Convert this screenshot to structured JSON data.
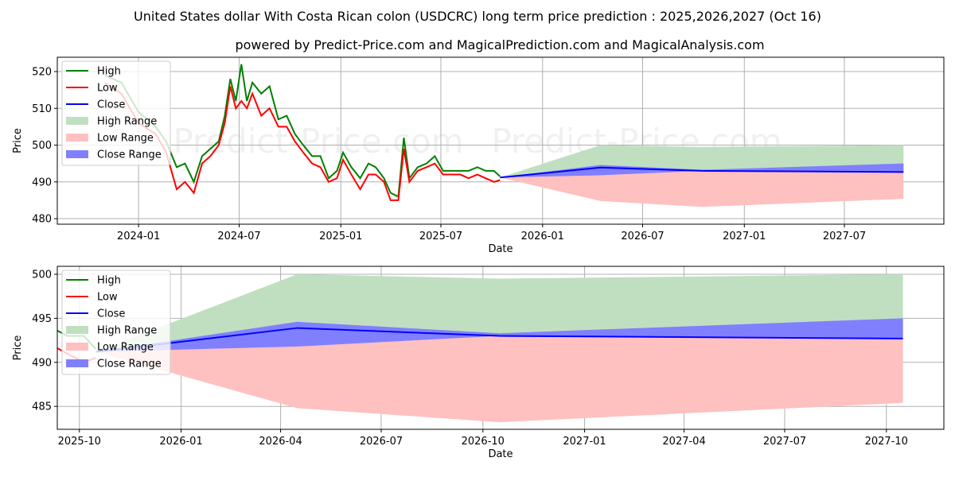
{
  "title": "United States dollar With Costa Rican colon (USDCRC) long term price prediction : 2025,2026,2027 (Oct 16)",
  "subtitle": "powered by Predict-Price.com and MagicalPrediction.com and MagicalAnalysis.com",
  "watermark": "Predict-Price.com",
  "colors": {
    "high": "#008000",
    "low": "#ff0000",
    "close": "#0000ff",
    "high_range": "#c0dfc0",
    "low_range": "#ffc0c0",
    "close_range": "#8080ff"
  },
  "chart_data": [
    {
      "type": "line",
      "name": "full",
      "xlabel": "Date",
      "ylabel": "Price",
      "xlim": [
        "2023-08-07",
        "2027-12-28"
      ],
      "ylim": [
        478.5,
        523.9
      ],
      "yticks": [
        480,
        490,
        500,
        510,
        520
      ],
      "xticks": [
        [
          "2024-01-01",
          "2024-01"
        ],
        [
          "2024-07-01",
          "2024-07"
        ],
        [
          "2025-01-01",
          "2025-01"
        ],
        [
          "2025-07-01",
          "2025-07"
        ],
        [
          "2026-01-01",
          "2026-01"
        ],
        [
          "2026-07-01",
          "2026-07"
        ],
        [
          "2027-01-01",
          "2027-01"
        ],
        [
          "2027-07-01",
          "2027-07"
        ]
      ],
      "legend": [
        "High",
        "Low",
        "Close",
        "High Range",
        "Low Range",
        "Close Range"
      ],
      "legend_position": "upper-left"
    },
    {
      "type": "line",
      "name": "forecast",
      "xlabel": "Date",
      "ylabel": "Price",
      "xlim": [
        "2025-09-11",
        "2027-11-22"
      ],
      "ylim": [
        482.4,
        500.9
      ],
      "yticks": [
        485,
        490,
        495,
        500
      ],
      "xticks": [
        [
          "2025-10-01",
          "2025-10"
        ],
        [
          "2026-01-01",
          "2026-01"
        ],
        [
          "2026-04-01",
          "2026-04"
        ],
        [
          "2026-07-01",
          "2026-07"
        ],
        [
          "2026-10-01",
          "2026-10"
        ],
        [
          "2027-01-01",
          "2027-01"
        ],
        [
          "2027-04-01",
          "2027-04"
        ],
        [
          "2027-07-01",
          "2027-07"
        ],
        [
          "2027-10-01",
          "2027-10"
        ]
      ],
      "legend": [
        "High",
        "Low",
        "Close",
        "High Range",
        "Low Range",
        "Close Range"
      ],
      "legend_position": "upper-left"
    }
  ],
  "history": {
    "columns": [
      "date",
      "high",
      "low"
    ],
    "rows": [
      [
        "2023-11-01",
        519,
        517
      ],
      [
        "2023-12-01",
        517,
        514
      ],
      [
        "2024-01-01",
        509,
        506
      ],
      [
        "2024-02-01",
        505,
        503
      ],
      [
        "2024-02-20",
        501,
        498
      ],
      [
        "2024-03-10",
        494,
        488
      ],
      [
        "2024-03-25",
        495,
        490
      ],
      [
        "2024-04-10",
        490,
        487
      ],
      [
        "2024-04-25",
        497,
        495
      ],
      [
        "2024-05-10",
        499,
        497
      ],
      [
        "2024-05-25",
        501,
        500
      ],
      [
        "2024-06-05",
        508,
        506
      ],
      [
        "2024-06-15",
        518,
        516
      ],
      [
        "2024-06-25",
        512,
        510
      ],
      [
        "2024-07-05",
        522,
        512
      ],
      [
        "2024-07-15",
        512,
        510
      ],
      [
        "2024-07-25",
        517,
        514
      ],
      [
        "2024-08-10",
        514,
        508
      ],
      [
        "2024-08-25",
        516,
        510
      ],
      [
        "2024-09-10",
        507,
        505
      ],
      [
        "2024-09-25",
        508,
        505
      ],
      [
        "2024-10-10",
        503,
        501
      ],
      [
        "2024-10-25",
        500,
        498
      ],
      [
        "2024-11-10",
        497,
        495
      ],
      [
        "2024-11-25",
        497,
        494
      ],
      [
        "2024-12-10",
        491,
        490
      ],
      [
        "2024-12-25",
        493,
        491
      ],
      [
        "2025-01-05",
        498,
        496
      ],
      [
        "2025-01-20",
        494,
        492
      ],
      [
        "2025-02-05",
        491,
        488
      ],
      [
        "2025-02-20",
        495,
        492
      ],
      [
        "2025-03-05",
        494,
        492
      ],
      [
        "2025-03-20",
        491,
        490
      ],
      [
        "2025-04-01",
        487,
        485
      ],
      [
        "2025-04-15",
        486,
        485
      ],
      [
        "2025-04-25",
        502,
        499
      ],
      [
        "2025-05-05",
        491,
        490
      ],
      [
        "2025-05-20",
        494,
        493
      ],
      [
        "2025-06-05",
        495,
        494
      ],
      [
        "2025-06-20",
        497,
        495
      ],
      [
        "2025-07-05",
        493,
        492
      ],
      [
        "2025-07-20",
        493,
        492
      ],
      [
        "2025-08-05",
        493,
        492
      ],
      [
        "2025-08-20",
        493,
        491
      ],
      [
        "2025-09-05",
        494,
        492
      ],
      [
        "2025-09-20",
        493,
        491
      ],
      [
        "2025-10-05",
        493,
        490
      ],
      [
        "2025-10-16",
        491.5,
        490.5
      ]
    ]
  },
  "forecast": {
    "columns": [
      "date",
      "high_max",
      "low_min",
      "close",
      "close_lo",
      "close_hi"
    ],
    "rows": [
      [
        "2025-10-16",
        491.2,
        491.2,
        491.2,
        491.2,
        491.2
      ],
      [
        "2026-04-16",
        500.0,
        484.8,
        493.9,
        491.8,
        494.6
      ],
      [
        "2026-10-16",
        499.5,
        483.2,
        493.0,
        493.0,
        493.3
      ],
      [
        "2027-10-16",
        500.0,
        485.4,
        492.7,
        492.7,
        495.0
      ]
    ]
  }
}
